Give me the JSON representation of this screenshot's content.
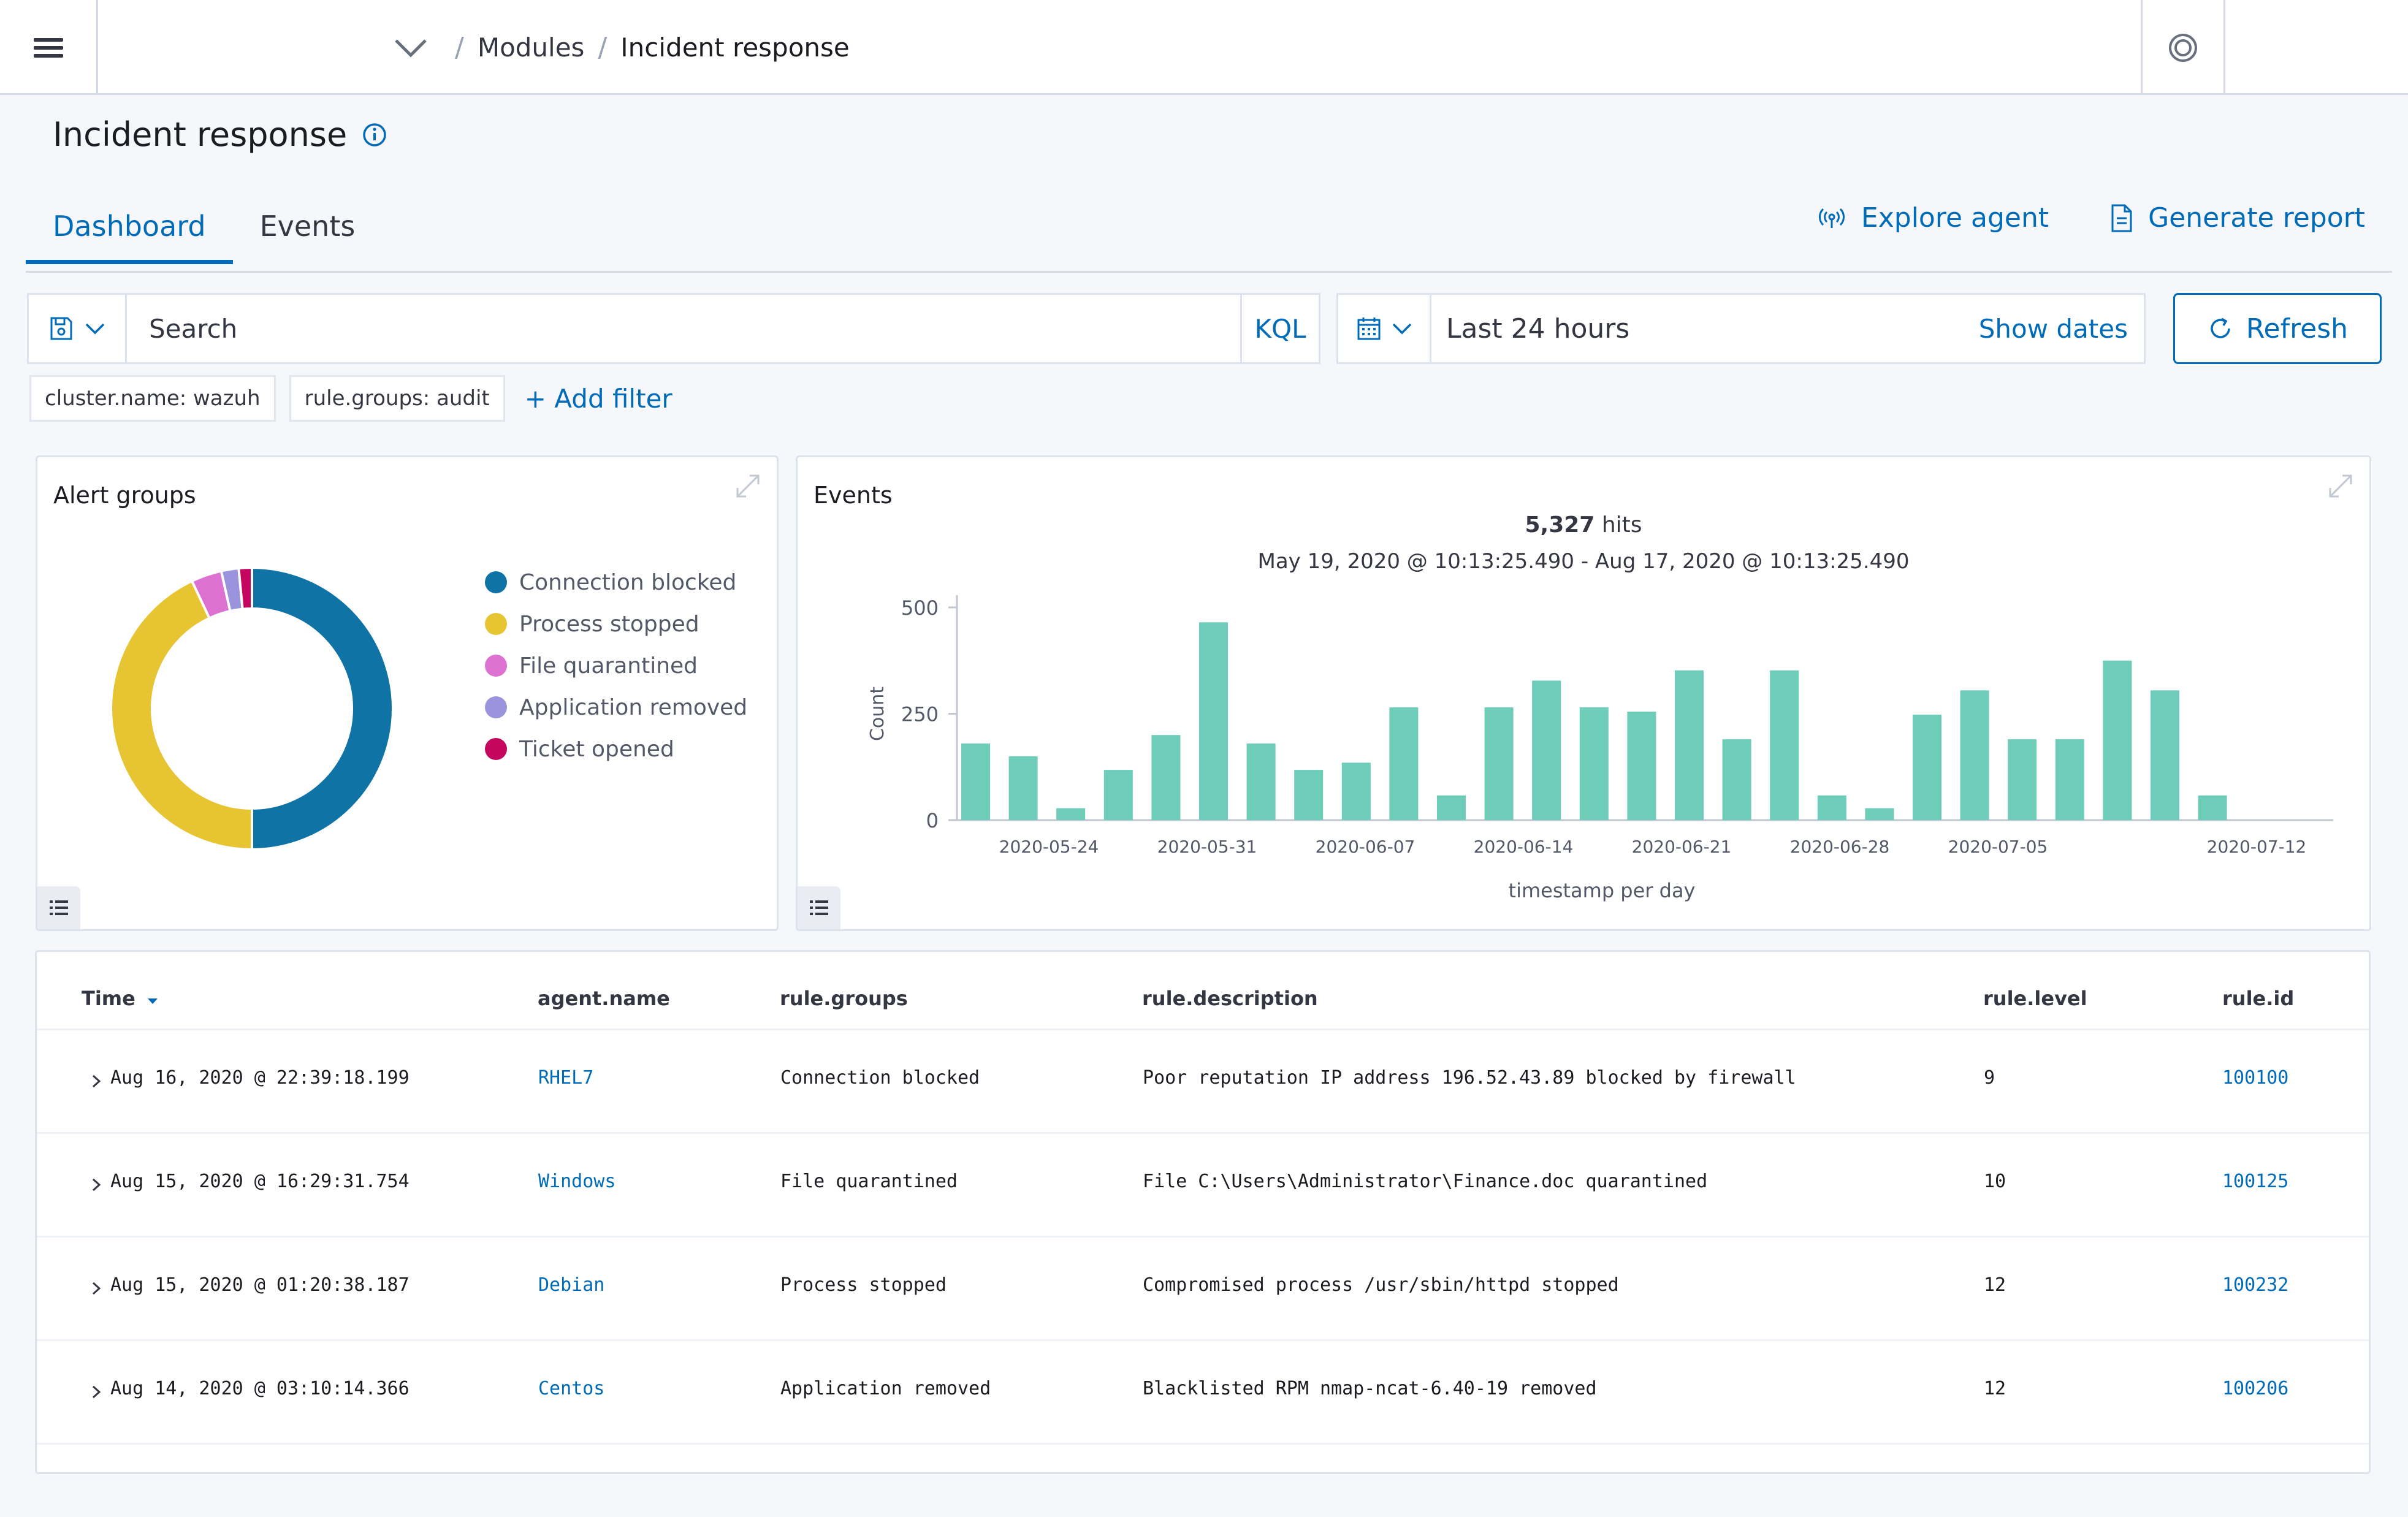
{
  "breadcrumbs": [
    "Modules",
    "Incident response"
  ],
  "page": {
    "title": "Incident response"
  },
  "tabs": [
    {
      "label": "Dashboard",
      "active": true
    },
    {
      "label": "Events",
      "active": false
    }
  ],
  "actions": {
    "explore_agent": "Explore agent",
    "generate_report": "Generate report"
  },
  "search": {
    "placeholder": "Search",
    "language": "KQL"
  },
  "date_picker": {
    "label": "Last 24 hours",
    "show_dates": "Show dates"
  },
  "refresh_label": "Refresh",
  "filters": [
    "cluster.name: wazuh",
    "rule.groups: audit"
  ],
  "add_filter": "+ Add filter",
  "alert_groups": {
    "title": "Alert groups",
    "legend": [
      {
        "label": "Connection blocked",
        "color": "#0f73a5"
      },
      {
        "label": "Process stopped",
        "color": "#e7c532"
      },
      {
        "label": "File quarantined",
        "color": "#dd71d2"
      },
      {
        "label": "Application removed",
        "color": "#9b94dc"
      },
      {
        "label": "Ticket opened",
        "color": "#c4065e"
      }
    ]
  },
  "events_panel": {
    "title": "Events",
    "hits_value": "5,327",
    "hits_unit": "hits",
    "range": "May 19, 2020 @ 10:13:25.490 - Aug 17, 2020 @ 10:13:25.490"
  },
  "chart_data": [
    {
      "type": "pie",
      "title": "Alert groups",
      "categories": [
        "Connection blocked",
        "Process stopped",
        "File quarantined",
        "Application removed",
        "Ticket opened"
      ],
      "values": [
        50,
        43,
        3.5,
        2,
        1.5
      ],
      "colors": [
        "#0f73a5",
        "#e7c532",
        "#dd71d2",
        "#9b94dc",
        "#c4065e"
      ]
    },
    {
      "type": "bar",
      "title": "",
      "xlabel": "timestamp per day",
      "ylabel": "Count",
      "ylim": [
        0,
        500
      ],
      "yticks": [
        0,
        250,
        500
      ],
      "xticks": [
        "2020-05-24",
        "2020-05-31",
        "2020-06-07",
        "2020-06-14",
        "2020-06-21",
        "2020-06-28",
        "2020-07-05",
        "2020-07-12"
      ],
      "color": "#6dcdb8",
      "values": [
        180,
        150,
        28,
        118,
        200,
        465,
        180,
        118,
        135,
        265,
        58,
        265,
        328,
        265,
        255,
        352,
        190,
        352,
        58,
        28,
        248,
        305,
        190,
        190,
        375,
        305,
        58
      ]
    }
  ],
  "table": {
    "columns": [
      "Time",
      "agent.name",
      "rule.groups",
      "rule.description",
      "rule.level",
      "rule.id"
    ],
    "rows": [
      {
        "time": "Aug 16, 2020 @ 22:39:18.199",
        "agent": "RHEL7",
        "group": "Connection blocked",
        "description": "Poor reputation IP address 196.52.43.89 blocked by firewall",
        "level": "9",
        "id": "100100"
      },
      {
        "time": "Aug 15, 2020 @ 16:29:31.754",
        "agent": "Windows",
        "group": "File quarantined",
        "description": "File C:\\Users\\Administrator\\Finance.doc quarantined",
        "level": "10",
        "id": "100125"
      },
      {
        "time": "Aug 15, 2020 @ 01:20:38.187",
        "agent": "Debian",
        "group": "Process stopped",
        "description": "Compromised process /usr/sbin/httpd stopped",
        "level": "12",
        "id": "100232"
      },
      {
        "time": "Aug 14, 2020 @ 03:10:14.366",
        "agent": "Centos",
        "group": "Application removed",
        "description": "Blacklisted RPM nmap-ncat-6.40-19 removed",
        "level": "12",
        "id": "100206"
      }
    ]
  }
}
